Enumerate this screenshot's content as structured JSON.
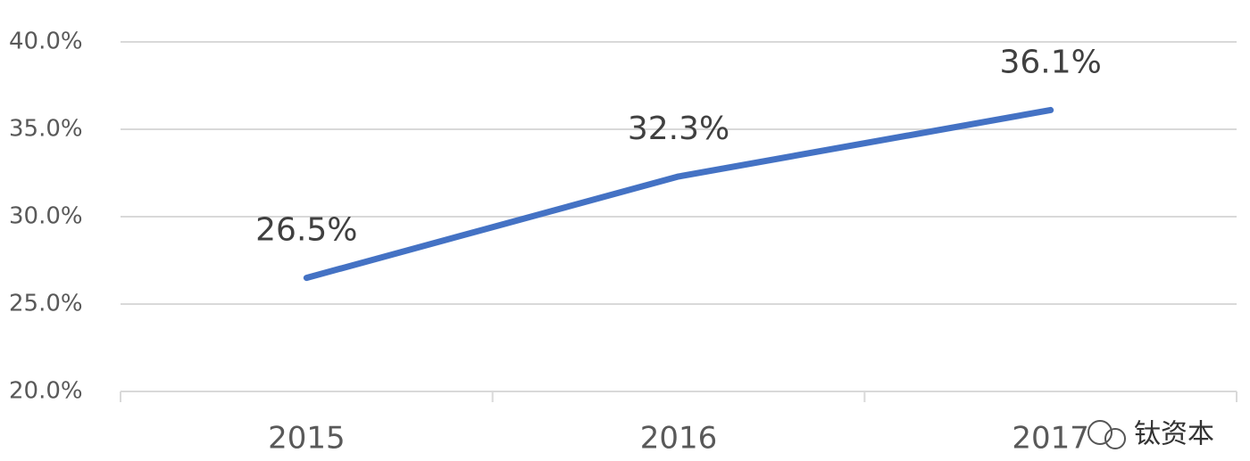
{
  "chart_data": {
    "type": "line",
    "categories": [
      "2015",
      "2016",
      "2017"
    ],
    "values": [
      26.5,
      32.3,
      36.1
    ],
    "value_labels": [
      "26.5%",
      "32.3%",
      "36.1%"
    ],
    "color": "#4472c4",
    "ylim": [
      20,
      40
    ],
    "yticks": [
      {
        "value": 20,
        "label": "20.0%"
      },
      {
        "value": 25,
        "label": "25.0%"
      },
      {
        "value": 30,
        "label": "30.0%"
      },
      {
        "value": 35,
        "label": "35.0%"
      },
      {
        "value": 40,
        "label": "40.0%"
      }
    ],
    "grid": true,
    "watermark": "钛资本"
  }
}
